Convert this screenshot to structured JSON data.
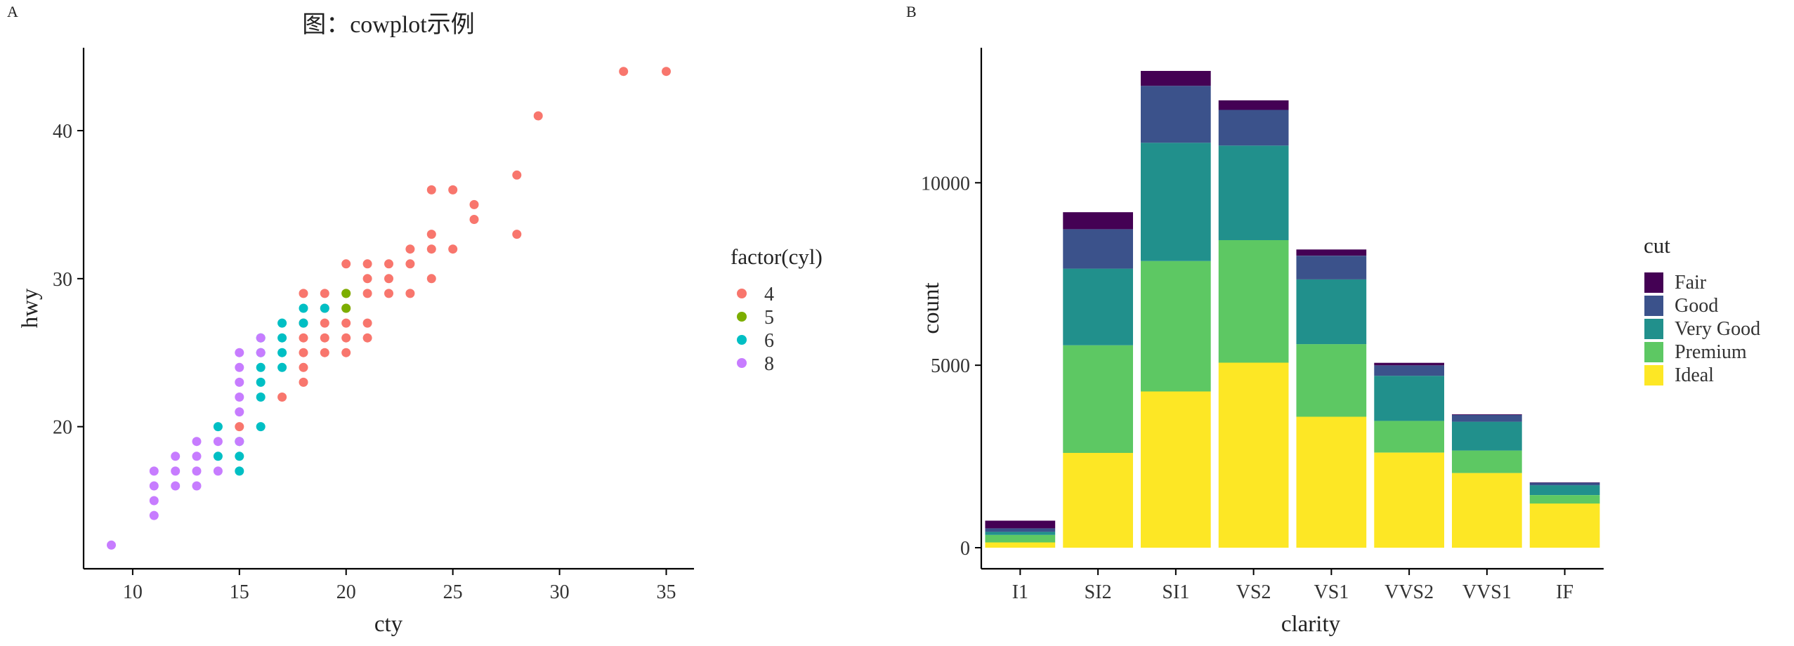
{
  "panels": {
    "a": {
      "tag": "A"
    },
    "b": {
      "tag": "B"
    }
  },
  "chart_data": [
    {
      "type": "scatter",
      "panel": "A",
      "title": "图：cowplot示例",
      "xlabel": "cty",
      "ylabel": "hwy",
      "xlim": [
        7.7,
        36.3
      ],
      "ylim": [
        10.4,
        45.6
      ],
      "xticks": [
        10,
        15,
        20,
        25,
        30,
        35
      ],
      "yticks": [
        20,
        30,
        40
      ],
      "grid": false,
      "legend": {
        "title": "factor(cyl)",
        "position": "right",
        "entries": [
          {
            "label": "4",
            "color": "#F8766D"
          },
          {
            "label": "5",
            "color": "#7CAE00"
          },
          {
            "label": "6",
            "color": "#00BFC4"
          },
          {
            "label": "8",
            "color": "#C77CFF"
          }
        ]
      },
      "series": [
        {
          "name": "4",
          "color": "#F8766D",
          "points": [
            [
              35,
              44
            ],
            [
              33,
              44
            ],
            [
              29,
              41
            ],
            [
              28,
              37
            ],
            [
              28,
              33
            ],
            [
              26,
              35
            ],
            [
              26,
              34
            ],
            [
              25,
              36
            ],
            [
              24,
              36
            ],
            [
              24,
              33
            ],
            [
              24,
              32
            ],
            [
              24,
              30
            ],
            [
              25,
              32
            ],
            [
              23,
              32
            ],
            [
              23,
              31
            ],
            [
              23,
              29
            ],
            [
              22,
              31
            ],
            [
              22,
              30
            ],
            [
              22,
              29
            ],
            [
              21,
              31
            ],
            [
              21,
              30
            ],
            [
              21,
              29
            ],
            [
              21,
              27
            ],
            [
              21,
              26
            ],
            [
              20,
              31
            ],
            [
              20,
              29
            ],
            [
              20,
              28
            ],
            [
              20,
              27
            ],
            [
              20,
              26
            ],
            [
              20,
              25
            ],
            [
              19,
              29
            ],
            [
              19,
              28
            ],
            [
              19,
              27
            ],
            [
              19,
              26
            ],
            [
              19,
              25
            ],
            [
              18,
              29
            ],
            [
              18,
              27
            ],
            [
              18,
              26
            ],
            [
              18,
              25
            ],
            [
              18,
              24
            ],
            [
              18,
              23
            ],
            [
              17,
              22
            ],
            [
              15,
              20
            ]
          ]
        },
        {
          "name": "5",
          "color": "#7CAE00",
          "points": [
            [
              20,
              29
            ],
            [
              20,
              28
            ]
          ]
        },
        {
          "name": "6",
          "color": "#00BFC4",
          "points": [
            [
              19,
              28
            ],
            [
              18,
              28
            ],
            [
              18,
              27
            ],
            [
              17,
              27
            ],
            [
              17,
              26
            ],
            [
              17,
              25
            ],
            [
              17,
              24
            ],
            [
              16,
              26
            ],
            [
              16,
              25
            ],
            [
              16,
              24
            ],
            [
              16,
              23
            ],
            [
              16,
              22
            ],
            [
              16,
              20
            ],
            [
              15,
              19
            ],
            [
              15,
              18
            ],
            [
              15,
              17
            ],
            [
              14,
              20
            ],
            [
              14,
              18
            ]
          ]
        },
        {
          "name": "8",
          "color": "#C77CFF",
          "points": [
            [
              16,
              26
            ],
            [
              16,
              25
            ],
            [
              15,
              25
            ],
            [
              15,
              24
            ],
            [
              15,
              23
            ],
            [
              15,
              22
            ],
            [
              15,
              21
            ],
            [
              15,
              19
            ],
            [
              14,
              19
            ],
            [
              14,
              17
            ],
            [
              13,
              19
            ],
            [
              13,
              18
            ],
            [
              13,
              17
            ],
            [
              13,
              16
            ],
            [
              12,
              18
            ],
            [
              12,
              17
            ],
            [
              12,
              16
            ],
            [
              11,
              17
            ],
            [
              11,
              16
            ],
            [
              11,
              15
            ],
            [
              11,
              14
            ],
            [
              9,
              12
            ]
          ]
        }
      ]
    },
    {
      "type": "bar",
      "stacked": true,
      "panel": "B",
      "xlabel": "clarity",
      "ylabel": "count",
      "ylim": [
        0,
        13700
      ],
      "yticks": [
        0,
        5000,
        10000
      ],
      "grid": false,
      "categories": [
        "I1",
        "SI2",
        "SI1",
        "VS2",
        "VS1",
        "VVS2",
        "VVS1",
        "IF"
      ],
      "legend": {
        "title": "cut",
        "position": "right"
      },
      "series": [
        {
          "name": "Fair",
          "color": "#440154",
          "values": [
            210,
            466,
            408,
            261,
            170,
            69,
            17,
            9
          ]
        },
        {
          "name": "Good",
          "color": "#3B528B",
          "values": [
            96,
            1081,
            1560,
            978,
            648,
            286,
            186,
            71
          ]
        },
        {
          "name": "Very Good",
          "color": "#21908C",
          "values": [
            84,
            2100,
            3240,
            2591,
            1775,
            1235,
            789,
            268
          ]
        },
        {
          "name": "Premium",
          "color": "#5DC863",
          "values": [
            205,
            2949,
            3575,
            3357,
            1989,
            870,
            616,
            230
          ]
        },
        {
          "name": "Ideal",
          "color": "#FDE725",
          "values": [
            146,
            2598,
            4282,
            5071,
            3589,
            2606,
            2047,
            1212
          ]
        }
      ]
    }
  ]
}
